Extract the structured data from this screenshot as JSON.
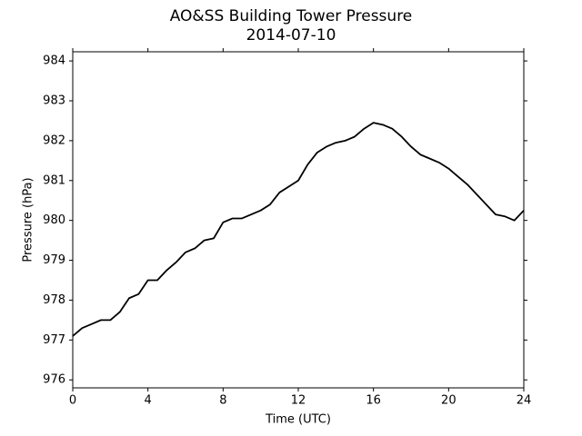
{
  "chart_data": {
    "type": "line",
    "title": "AO&SS Building Tower Pressure",
    "subtitle": "2014-07-10",
    "xlabel": "Time (UTC)",
    "ylabel": "Pressure (hPa)",
    "x": [
      0,
      0.5,
      1,
      1.5,
      2,
      2.5,
      3,
      3.5,
      4,
      4.5,
      5,
      5.5,
      6,
      6.5,
      7,
      7.5,
      8,
      8.5,
      9,
      9.5,
      10,
      10.5,
      11,
      11.5,
      12,
      12.5,
      13,
      13.5,
      14,
      14.5,
      15,
      15.5,
      16,
      16.5,
      17,
      17.5,
      18,
      18.5,
      19,
      19.5,
      20,
      20.5,
      21,
      21.5,
      22,
      22.5,
      23,
      23.5,
      24
    ],
    "series": [
      {
        "color": "#000000",
        "values": [
          977.1,
          977.3,
          977.4,
          977.5,
          977.5,
          977.7,
          978.05,
          978.15,
          978.5,
          978.5,
          978.75,
          978.95,
          979.2,
          979.3,
          979.5,
          979.55,
          979.95,
          980.05,
          980.05,
          980.15,
          980.25,
          980.4,
          980.7,
          980.85,
          981.0,
          981.4,
          981.7,
          981.85,
          981.95,
          982.0,
          982.1,
          982.3,
          982.45,
          982.4,
          982.3,
          982.1,
          981.85,
          981.65,
          981.55,
          981.45,
          981.3,
          981.1,
          980.9,
          980.65,
          980.4,
          980.15,
          980.1,
          980.0,
          980.25
        ]
      }
    ],
    "xlim": [
      0,
      24
    ],
    "xticks": [
      0,
      4,
      8,
      12,
      16,
      20,
      24
    ],
    "ylim": [
      975.8,
      984.23
    ],
    "yticks": [
      976,
      977,
      978,
      979,
      980,
      981,
      982,
      983,
      984
    ]
  }
}
